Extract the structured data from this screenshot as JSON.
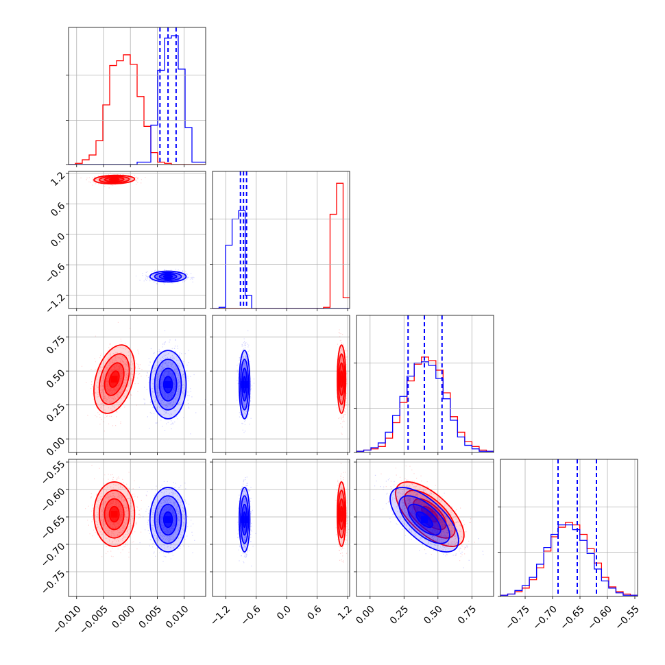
{
  "chart_data": {
    "type": "corner",
    "parameters": 4,
    "grid": true,
    "series": [
      {
        "color": "#ff0000",
        "means": [
          -0.003,
          1.08,
          0.44,
          -0.645
        ],
        "stds": [
          0.0018,
          0.04,
          0.12,
          0.028
        ],
        "corr": [
          [
            1,
            0.1,
            0.35,
            0
          ],
          [
            0.1,
            1,
            0,
            0
          ],
          [
            0.35,
            0,
            1,
            -0.65
          ],
          [
            0,
            0,
            -0.65,
            1
          ]
        ],
        "hist": [
          [
            0,
            0.01,
            0.04,
            0.08,
            0.2,
            0.5,
            0.83,
            0.87,
            0.92,
            0.84,
            0.57,
            0.32,
            0.1,
            0.02,
            0.01,
            0,
            0,
            0,
            0,
            0
          ],
          [
            0,
            0,
            0,
            0,
            0,
            0,
            0,
            0,
            0,
            0,
            0,
            0,
            0,
            0,
            0,
            0,
            0,
            0.01,
            0.79,
            1.05,
            0.09
          ],
          [
            0.01,
            0.02,
            0.03,
            0.05,
            0.12,
            0.25,
            0.42,
            0.6,
            0.74,
            0.8,
            0.77,
            0.69,
            0.5,
            0.3,
            0.17,
            0.09,
            0.05,
            0.02,
            0.01
          ],
          [
            0.01,
            0.02,
            0.04,
            0.07,
            0.14,
            0.24,
            0.38,
            0.5,
            0.58,
            0.62,
            0.6,
            0.52,
            0.4,
            0.28,
            0.16,
            0.08,
            0.04,
            0.02,
            0.01
          ]
        ],
        "quantiles": []
      },
      {
        "color": "#0000ff",
        "means": [
          0.007,
          -0.83,
          0.4,
          -0.655
        ],
        "stds": [
          0.0016,
          0.05,
          0.12,
          0.028
        ],
        "corr": [
          [
            1,
            0,
            0,
            0
          ],
          [
            0,
            1,
            0,
            0
          ],
          [
            0,
            0,
            1,
            -0.65
          ],
          [
            0,
            0,
            -0.65,
            1
          ]
        ],
        "hist": [
          [
            0,
            0,
            0,
            0,
            0,
            0,
            0,
            0,
            0,
            0,
            0.02,
            0.02,
            0.33,
            0.79,
            1.06,
            1.08,
            0.8,
            0.31,
            0.02,
            0.02
          ],
          [
            0,
            0.01,
            0.53,
            0.75,
            0.82,
            0.11,
            0,
            0,
            0,
            0,
            0,
            0,
            0,
            0,
            0,
            0,
            0,
            0,
            0,
            0,
            0
          ],
          [
            0.01,
            0.02,
            0.04,
            0.08,
            0.17,
            0.31,
            0.47,
            0.64,
            0.75,
            0.76,
            0.73,
            0.62,
            0.45,
            0.27,
            0.13,
            0.06,
            0.03,
            0.01,
            0.01
          ],
          [
            0.01,
            0.02,
            0.05,
            0.09,
            0.16,
            0.27,
            0.41,
            0.52,
            0.6,
            0.6,
            0.56,
            0.47,
            0.36,
            0.23,
            0.13,
            0.07,
            0.03,
            0.01,
            0.01
          ]
        ],
        "quantiles": [
          [
            0.0055,
            0.007,
            0.0085
          ],
          [
            -0.91,
            -0.85,
            -0.79
          ],
          [
            0.28,
            0.4,
            0.53
          ],
          [
            -0.69,
            -0.655,
            -0.62
          ]
        ]
      }
    ],
    "ranges": [
      [
        -0.0115,
        0.014
      ],
      [
        -1.46,
        1.24
      ],
      [
        -0.1,
        0.91
      ],
      [
        -0.795,
        -0.545
      ]
    ],
    "ticks": [
      [
        -0.01,
        -0.005,
        0.0,
        0.005,
        0.01
      ],
      [
        -1.2,
        -0.6,
        0.0,
        0.6,
        1.2
      ],
      [
        0.0,
        0.25,
        0.5,
        0.75
      ],
      [
        -0.75,
        -0.7,
        -0.65,
        -0.6,
        -0.55
      ]
    ],
    "tick_labels": [
      [
        "−0.010",
        "−0.005",
        "0.000",
        "0.005",
        "0.010"
      ],
      [
        "−1.2",
        "−0.6",
        "0.0",
        "0.6",
        "1.2"
      ],
      [
        "0.00",
        "0.25",
        "0.50",
        "0.75"
      ],
      [
        "−0.75",
        "−0.70",
        "−0.65",
        "−0.60",
        "−0.55"
      ]
    ]
  }
}
